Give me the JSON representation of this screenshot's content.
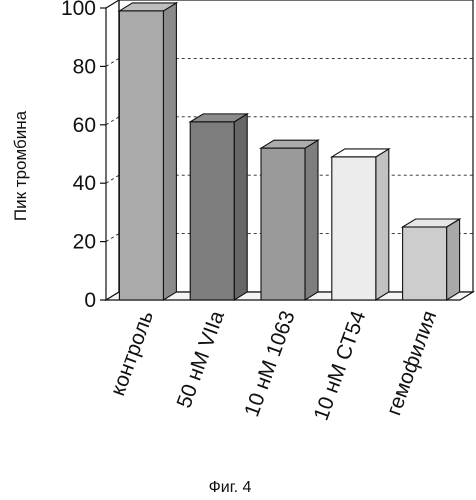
{
  "chart_data": {
    "type": "bar",
    "ylabel": "Пик тромбина",
    "xlabel": "",
    "ylim": [
      0,
      100
    ],
    "yticks": [
      0,
      20,
      40,
      60,
      80,
      100
    ],
    "grid": true,
    "style": "3d",
    "categories": [
      "контроль",
      "50 нМ VIIa",
      "10 нМ 1063",
      "10 нМ СТ54",
      "гемофилия"
    ],
    "values": [
      99,
      61,
      52,
      49,
      25
    ],
    "colors": [
      "#aaaaaa",
      "#7d7d7d",
      "#9a9a9a",
      "#ececec",
      "#cdcdcd"
    ]
  },
  "caption": "Фиг. 4"
}
